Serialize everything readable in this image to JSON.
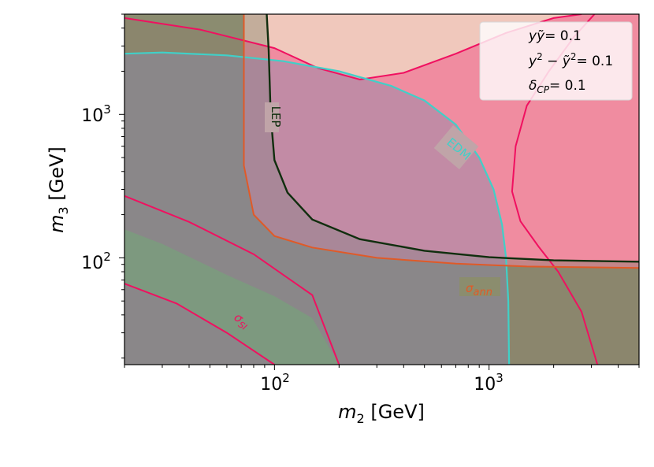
{
  "chart_data": {
    "type": "area",
    "title": "",
    "xlabel": "$m_2$ [GeV]",
    "ylabel": "$m_3$ [GeV]",
    "xscale": "log",
    "yscale": "log",
    "xlim": [
      20,
      5000
    ],
    "ylim": [
      18,
      5000
    ],
    "xticks": [
      {
        "value": 100,
        "base": "10",
        "exp": "2"
      },
      {
        "value": 1000,
        "base": "10",
        "exp": "3"
      }
    ],
    "yticks": [
      {
        "value": 100,
        "base": "10",
        "exp": "2"
      },
      {
        "value": 1000,
        "base": "10",
        "exp": "3"
      }
    ],
    "legend": {
      "placement": "top-right",
      "entries": [
        "yỹ= 0.1",
        "y² − ỹ²= 0.1",
        "δCP= 0.1"
      ]
    },
    "contour_labels": {
      "lep": "LEP",
      "edm": "EDM",
      "ann": "σann",
      "si": "σSI"
    },
    "colors": {
      "ann_region": "#8b8d6e",
      "lep_region": "#6f7a5e",
      "relic_band": "#f08ca0",
      "light_region": "#f0c8bc",
      "si_band": "#7b9b7e",
      "edm_region": "#8a8aaa",
      "lep_line": "#102e0e",
      "ann_line": "#e05a28",
      "edm_line": "#40d0c8",
      "relic_line": "#f01060"
    },
    "regions": {
      "ann": [
        [
          20,
          5000
        ],
        [
          72,
          5000
        ],
        [
          72,
          440
        ],
        [
          80,
          200
        ],
        [
          100,
          142
        ],
        [
          150,
          118
        ],
        [
          300,
          100
        ],
        [
          700,
          91
        ],
        [
          1500,
          87
        ],
        [
          5000,
          85
        ],
        [
          5000,
          18
        ],
        [
          20,
          18
        ]
      ],
      "lep": [
        [
          20,
          5000
        ],
        [
          92,
          5000
        ],
        [
          94,
          2800
        ],
        [
          96,
          1000
        ],
        [
          100,
          480
        ],
        [
          115,
          285
        ],
        [
          150,
          185
        ],
        [
          250,
          135
        ],
        [
          500,
          112
        ],
        [
          1000,
          101
        ],
        [
          2000,
          96
        ],
        [
          5000,
          94
        ],
        [
          5000,
          18
        ],
        [
          20,
          18
        ]
      ],
      "relic": [
        [
          20,
          4700
        ],
        [
          45,
          3900
        ],
        [
          100,
          2900
        ],
        [
          160,
          2100
        ],
        [
          250,
          1750
        ],
        [
          400,
          1950
        ],
        [
          700,
          2650
        ],
        [
          1200,
          3700
        ],
        [
          2000,
          4700
        ],
        [
          2700,
          5000
        ],
        [
          5000,
          5000
        ],
        [
          5000,
          18
        ],
        [
          20,
          18
        ]
      ],
      "edm": [
        [
          20,
          2650
        ],
        [
          30,
          2700
        ],
        [
          60,
          2580
        ],
        [
          110,
          2350
        ],
        [
          200,
          2000
        ],
        [
          350,
          1580
        ],
        [
          500,
          1250
        ],
        [
          700,
          850
        ],
        [
          900,
          500
        ],
        [
          1050,
          300
        ],
        [
          1150,
          170
        ],
        [
          1200,
          100
        ],
        [
          1230,
          50
        ],
        [
          1240,
          18
        ],
        [
          20,
          18
        ]
      ],
      "si": [
        [
          20,
          158
        ],
        [
          30,
          125
        ],
        [
          60,
          76
        ],
        [
          100,
          54
        ],
        [
          150,
          38
        ],
        [
          200,
          18
        ],
        [
          100,
          18
        ],
        [
          60,
          30
        ],
        [
          35,
          48
        ],
        [
          20,
          66
        ]
      ]
    },
    "relic_lines": [
      [
        [
          20,
          4700
        ],
        [
          45,
          3900
        ],
        [
          100,
          2900
        ],
        [
          160,
          2100
        ],
        [
          250,
          1750
        ],
        [
          400,
          1950
        ],
        [
          700,
          2650
        ],
        [
          1200,
          3700
        ],
        [
          2000,
          4700
        ],
        [
          2700,
          5000
        ]
      ],
      [
        [
          3100,
          5000
        ],
        [
          2500,
          3500
        ],
        [
          1900,
          2000
        ],
        [
          1500,
          1150
        ],
        [
          1330,
          600
        ],
        [
          1280,
          290
        ],
        [
          1400,
          180
        ],
        [
          1700,
          120
        ],
        [
          2100,
          80
        ],
        [
          2700,
          42
        ],
        [
          3200,
          18
        ]
      ],
      [
        [
          20,
          270
        ],
        [
          40,
          178
        ],
        [
          80,
          106
        ],
        [
          150,
          55
        ],
        [
          200,
          18
        ]
      ],
      [
        [
          20,
          66
        ],
        [
          35,
          48
        ],
        [
          60,
          30
        ],
        [
          100,
          18
        ]
      ]
    ],
    "edm_line": [
      [
        20,
        2650
      ],
      [
        30,
        2700
      ],
      [
        60,
        2580
      ],
      [
        110,
        2350
      ],
      [
        200,
        2000
      ],
      [
        350,
        1580
      ],
      [
        500,
        1250
      ],
      [
        700,
        850
      ],
      [
        900,
        500
      ],
      [
        1050,
        300
      ],
      [
        1150,
        170
      ],
      [
        1200,
        100
      ],
      [
        1230,
        50
      ],
      [
        1240,
        18
      ]
    ],
    "lep_line": [
      [
        92,
        5000
      ],
      [
        94,
        2800
      ],
      [
        96,
        1000
      ],
      [
        100,
        480
      ],
      [
        115,
        285
      ],
      [
        150,
        185
      ],
      [
        250,
        135
      ],
      [
        500,
        112
      ],
      [
        1000,
        101
      ],
      [
        2000,
        96
      ],
      [
        5000,
        94
      ]
    ],
    "ann_line": [
      [
        72,
        5000
      ],
      [
        72,
        440
      ],
      [
        80,
        200
      ],
      [
        100,
        142
      ],
      [
        150,
        118
      ],
      [
        300,
        100
      ],
      [
        700,
        91
      ],
      [
        1500,
        87
      ],
      [
        5000,
        85
      ]
    ]
  }
}
